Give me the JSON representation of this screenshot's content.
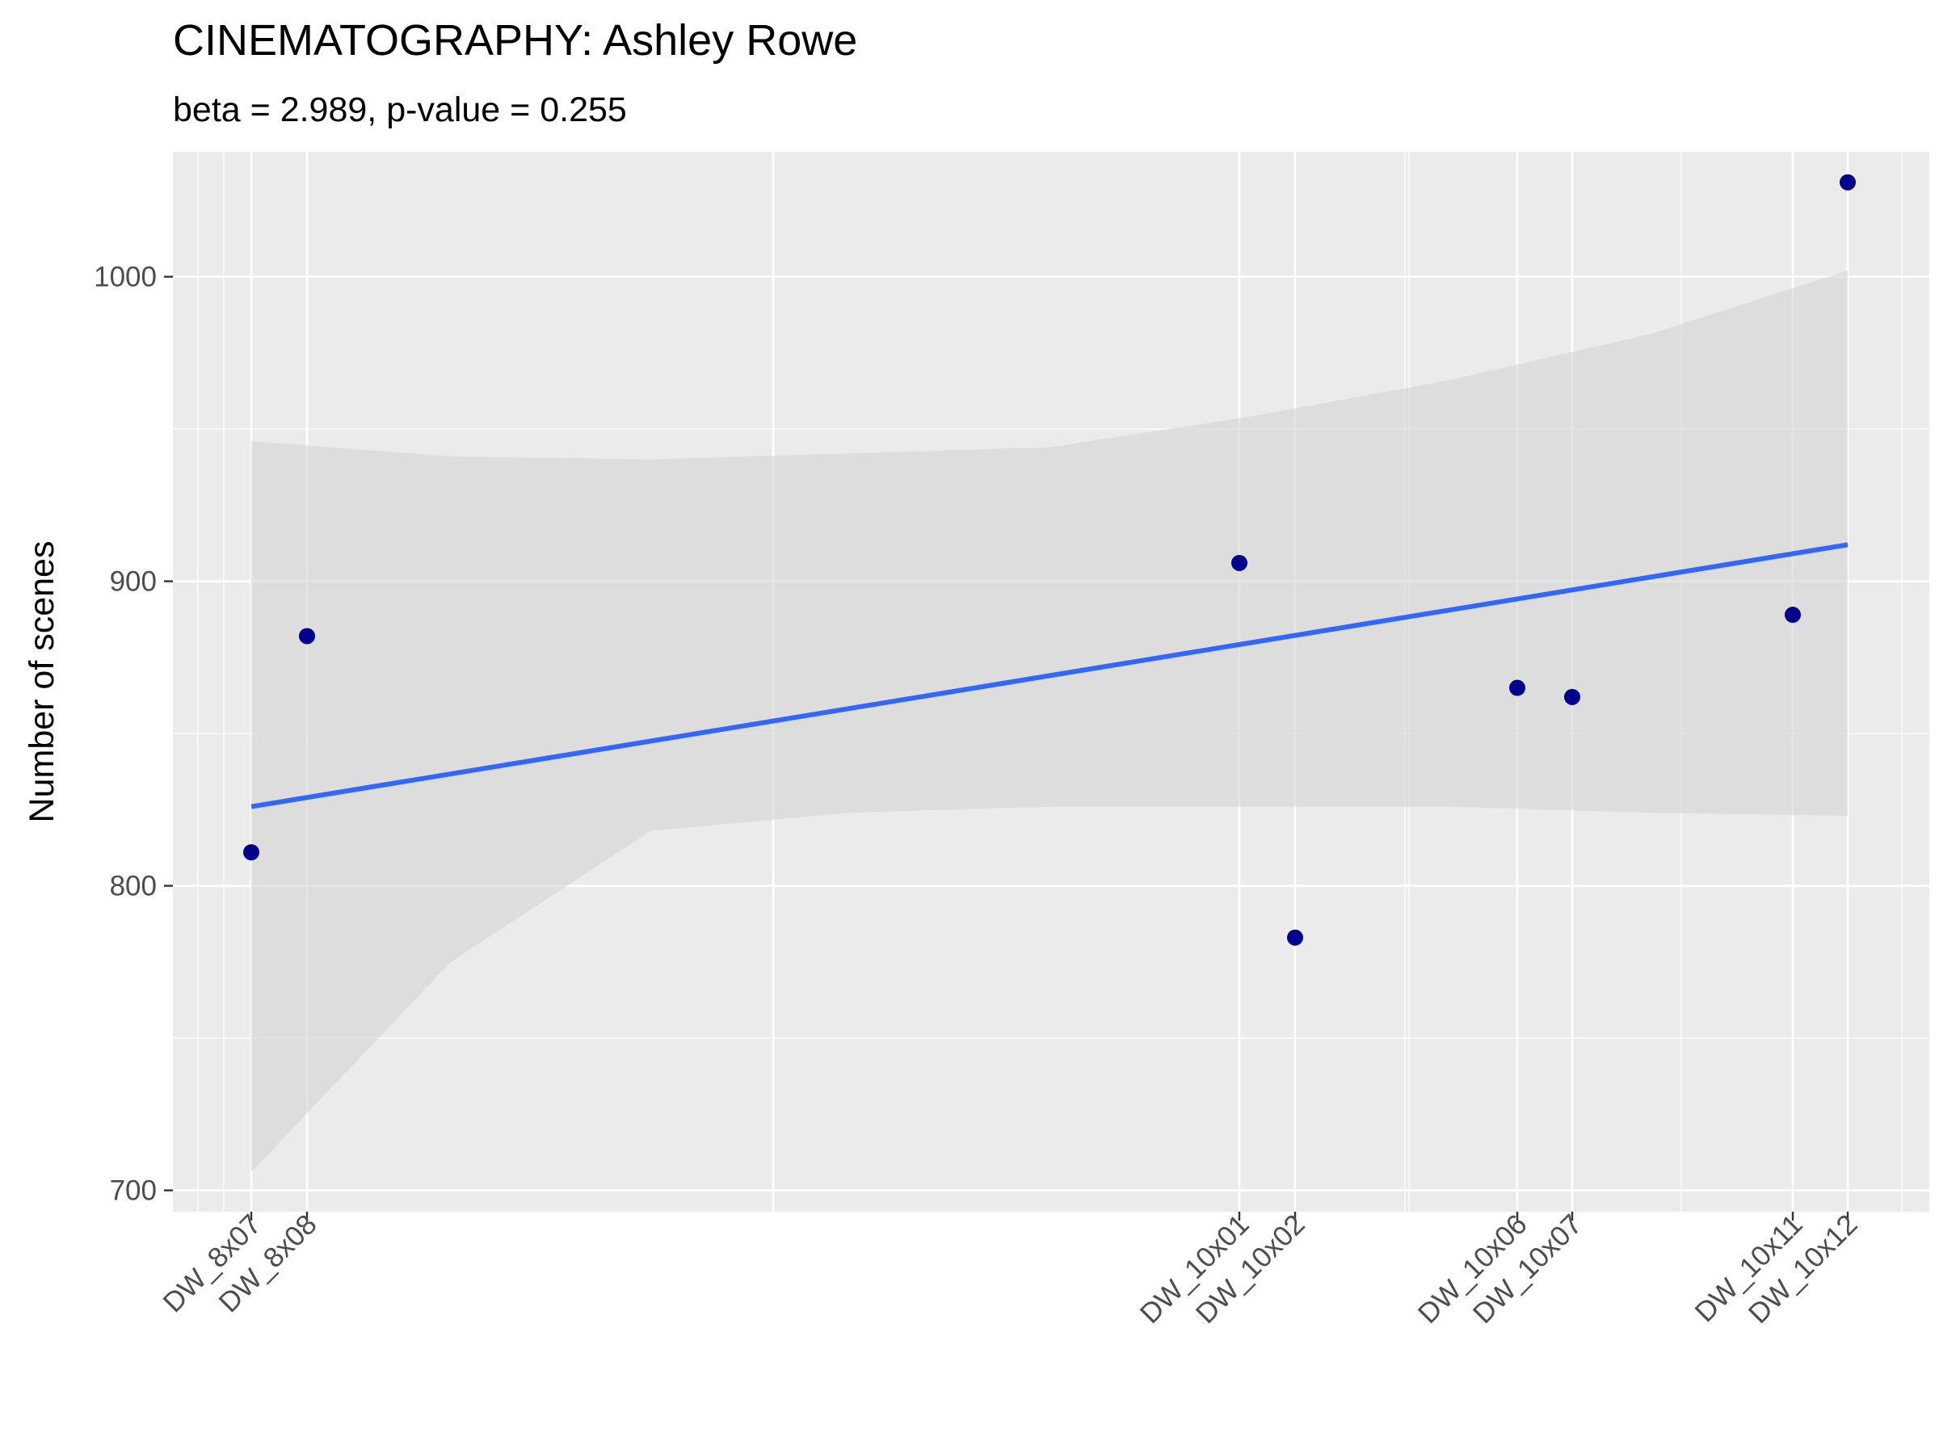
{
  "chart_data": {
    "type": "scatter",
    "title": "CINEMATOGRAPHY: Ashley Rowe",
    "subtitle": "beta = 2.989, p-value = 0.255",
    "xlabel": "",
    "ylabel": "Number of scenes",
    "x_tick_labels": [
      "DW_8x07",
      "DW_8x08",
      "DW_10x01",
      "DW_10x02",
      "DW_10x06",
      "DW_10x07",
      "DW_10x11",
      "DW_10x12"
    ],
    "y_ticks": [
      700,
      800,
      900,
      1000
    ],
    "ylim": [
      693,
      1041
    ],
    "grid": true,
    "points": [
      {
        "x": "DW_8x07",
        "y": 811
      },
      {
        "x": "DW_8x08",
        "y": 882
      },
      {
        "x": "DW_10x01",
        "y": 906
      },
      {
        "x": "DW_10x02",
        "y": 783
      },
      {
        "x": "DW_10x06",
        "y": 865
      },
      {
        "x": "DW_10x07",
        "y": 862
      },
      {
        "x": "DW_10x11",
        "y": 889
      },
      {
        "x": "DW_10x12",
        "y": 1031
      }
    ],
    "fit_line": {
      "start": 826,
      "end": 912
    },
    "confidence_band": {
      "upper": [
        946,
        941,
        940,
        942,
        944,
        954,
        966,
        981,
        1002
      ],
      "lower": [
        706,
        775,
        818,
        824,
        826,
        826,
        826,
        824,
        823
      ]
    },
    "colors": {
      "panel": "#EBEBEB",
      "grid": "#FFFFFF",
      "point": "#00008B",
      "line": "#3366FF",
      "band": "#D3D3D3"
    }
  }
}
